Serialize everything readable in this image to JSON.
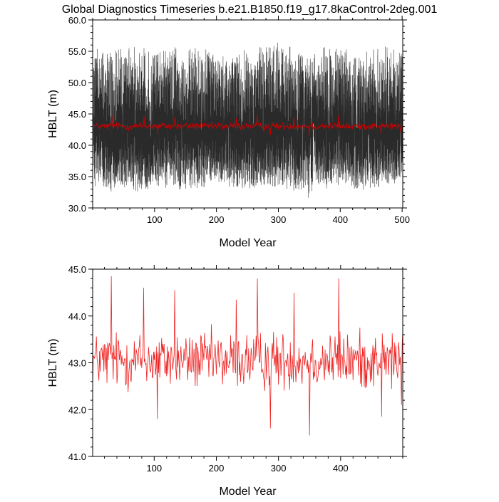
{
  "page": {
    "title": "Global Diagnostics Timeseries b.e21.B1850.f19_g17.8kaControl-2deg.001"
  },
  "chart_data": [
    {
      "type": "line",
      "xlabel": "Model Year",
      "ylabel": "HBLT (m)",
      "xlim": [
        0,
        501
      ],
      "ylim": [
        30.0,
        60.0
      ],
      "xticks": [
        100,
        200,
        300,
        400,
        500
      ],
      "yticks": [
        30.0,
        35.0,
        40.0,
        45.0,
        50.0,
        55.0,
        60.0
      ],
      "grid": false,
      "series": [
        {
          "color": "#000000",
          "description": "monthly values, ~6000 samples",
          "band_low_outer": [
            33.5,
            32.5,
            33.0,
            32.0,
            33.5,
            33.0,
            32.5,
            33.0,
            34.0,
            33.0,
            32.5,
            33.5,
            33.0,
            32.5,
            31.5,
            33.0,
            33.5,
            32.5,
            33.0,
            33.5,
            34.0
          ],
          "band_high_outer": [
            56.5,
            55.5,
            56.0,
            56.5,
            55.0,
            56.0,
            55.5,
            56.5,
            55.0,
            56.0,
            55.5,
            56.0,
            56.5,
            55.5,
            55.0,
            56.0,
            55.5,
            55.0,
            55.5,
            56.0,
            55.5
          ],
          "band_low_inner": 38.5,
          "band_high_inner": 46.5
        },
        {
          "color": "#cc0000",
          "description": "annual mean",
          "ref": "annual"
        }
      ]
    },
    {
      "type": "line",
      "xlabel": "Model Year",
      "ylabel": "HBLT (m)",
      "xlim": [
        1,
        500
      ],
      "ylim": [
        41.0,
        45.0
      ],
      "xticks": [
        100,
        200,
        300,
        400
      ],
      "yticks": [
        41.0,
        42.0,
        43.0,
        44.0,
        45.0
      ],
      "grid": false,
      "series": [
        {
          "color": "#cc0000",
          "ref": "annual"
        }
      ]
    }
  ],
  "annual_series": {
    "x_start": 1,
    "x_end": 500,
    "mean": 43.05,
    "sd": 0.5,
    "min": 41.45,
    "max": 44.85,
    "peaks": [
      [
        31,
        44.85
      ],
      [
        83,
        44.6
      ],
      [
        133,
        44.55
      ],
      [
        232,
        44.35
      ],
      [
        266,
        44.8
      ],
      [
        325,
        44.5
      ],
      [
        397,
        44.8
      ]
    ],
    "troughs": [
      [
        105,
        41.8
      ],
      [
        287,
        41.6
      ],
      [
        350,
        41.45
      ],
      [
        466,
        41.85
      ],
      [
        498,
        42.1
      ]
    ]
  }
}
